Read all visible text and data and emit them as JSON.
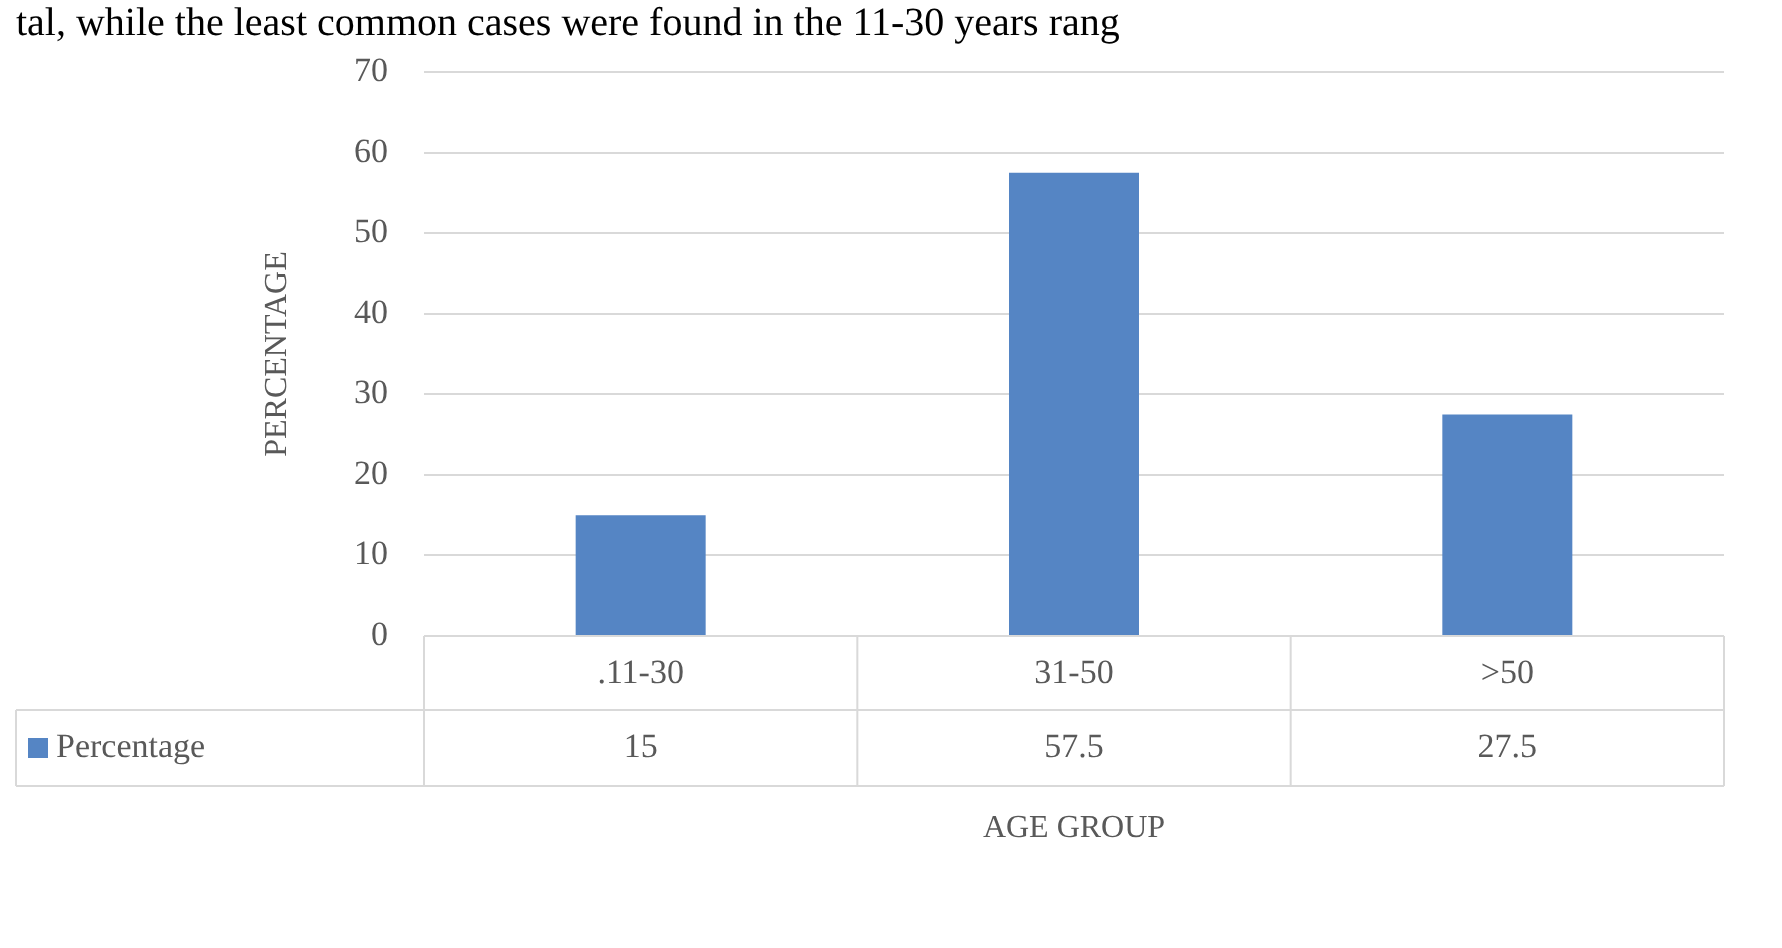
{
  "chart_data": {
    "type": "bar",
    "annotations": [
      "tal, while the least common cases were found in the 11-30 years rang"
    ],
    "xlabel": "AGE GROUP",
    "ylabel": "PERCENTAGE",
    "categories": [
      ".11-30",
      "31-50",
      ">50"
    ],
    "series": [
      {
        "name": "Percentage",
        "color": "#5585c4",
        "values": [
          15,
          57.5,
          27.5
        ]
      }
    ],
    "ylim": [
      0,
      70
    ],
    "yticks": [
      0,
      10,
      20,
      30,
      40,
      50,
      60,
      70
    ],
    "grid": "y",
    "data_labels": true
  }
}
